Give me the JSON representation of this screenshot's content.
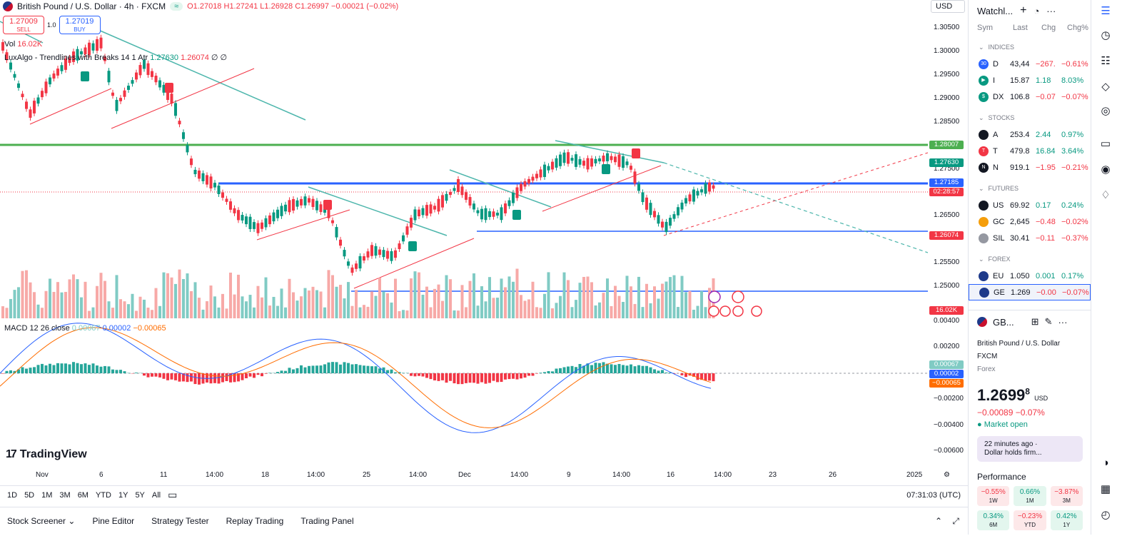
{
  "header": {
    "symbol_title": "British Pound / U.S. Dollar · 4h · FXCM",
    "pill": "≈",
    "open": "O1.27018",
    "high": "H1.27241",
    "low": "L1.26928",
    "close": "C1.26997",
    "change": "−0.00021 (−0.02%)"
  },
  "trade": {
    "sell_price": "1.27009",
    "sell_label": "SELL",
    "qty": "1.0",
    "buy_price": "1.27019",
    "buy_label": "BUY"
  },
  "indicators": {
    "vol_label": "Vol",
    "vol_value": "16.02K",
    "trend_name": "LuxAlgo - Trendlines with Breaks 14 1 Atr",
    "trend_v1": "1.27630",
    "trend_v2": "1.26074",
    "trend_tail": "∅ ∅",
    "macd_name": "MACD 12 26 close",
    "macd_v1": "0.00067",
    "macd_v2": "0.00002",
    "macd_v3": "−0.00065"
  },
  "currency": "USD",
  "price_ticks": [
    "1.30500",
    "1.30000",
    "1.29500",
    "1.29000",
    "1.28500",
    "1.27500",
    "1.26500",
    "1.25500",
    "1.25000",
    "0.00400",
    "0.00200",
    "−0.00200",
    "−0.00400",
    "−0.00600"
  ],
  "price_tags": {
    "green_line": "1.28007",
    "trend_upper": "1.27630",
    "blue_line": "1.27185",
    "countdown": "02:28:57",
    "trend_lower": "1.26074",
    "volume": "16.02K",
    "macd_hist": "0.00067",
    "macd_line": "0.00002",
    "macd_signal": "−0.00065"
  },
  "time_axis": [
    "Nov",
    "6",
    "11",
    "14:00",
    "18",
    "14:00",
    "25",
    "14:00",
    "Dec",
    "14:00",
    "9",
    "14:00",
    "16",
    "14:00",
    "23",
    "26",
    "2025"
  ],
  "logo_text": "TradingView",
  "ranges": [
    "1D",
    "5D",
    "1M",
    "3M",
    "6M",
    "YTD",
    "1Y",
    "5Y",
    "All"
  ],
  "clock": "07:31:03 (UTC)",
  "bottom_tabs": [
    "Stock Screener",
    "Pine Editor",
    "Strategy Tester",
    "Replay Trading",
    "Trading Panel"
  ],
  "watchlist": {
    "title": "Watchl...",
    "cols": [
      "Sym",
      "Last",
      "Chg",
      "Chg%"
    ],
    "sections": [
      {
        "name": "INDICES",
        "rows": [
          {
            "sym": "D",
            "last": "43,44",
            "chg": "−267.",
            "pct": "−0.61%",
            "dir": "dn",
            "color": "#2962ff",
            "ico": "30"
          },
          {
            "sym": "I",
            "last": "15.87",
            "chg": "1.18",
            "pct": "8.03%",
            "dir": "up",
            "color": "#089981",
            "ico": "▶"
          },
          {
            "sym": "DX",
            "last": "106.8",
            "chg": "−0.07",
            "pct": "−0.07%",
            "dir": "dn",
            "color": "#089981",
            "ico": "$"
          }
        ]
      },
      {
        "name": "STOCKS",
        "rows": [
          {
            "sym": "A",
            "last": "253.4",
            "chg": "2.44",
            "pct": "0.97%",
            "dir": "up",
            "color": "#131722",
            "ico": ""
          },
          {
            "sym": "T",
            "last": "479.8",
            "chg": "16.84",
            "pct": "3.64%",
            "dir": "up",
            "color": "#f23645",
            "ico": "T"
          },
          {
            "sym": "N",
            "last": "919.1",
            "chg": "−1.95",
            "pct": "−0.21%",
            "dir": "dn",
            "color": "#131722",
            "ico": "N"
          }
        ]
      },
      {
        "name": "FUTURES",
        "rows": [
          {
            "sym": "US",
            "last": "69.92",
            "chg": "0.17",
            "pct": "0.24%",
            "dir": "up",
            "color": "#131722",
            "ico": ""
          },
          {
            "sym": "GC",
            "last": "2,645",
            "chg": "−0.48",
            "pct": "−0.02%",
            "dir": "dn",
            "color": "#f59e0b",
            "ico": ""
          },
          {
            "sym": "SIL",
            "last": "30.41",
            "chg": "−0.11",
            "pct": "−0.37%",
            "dir": "dn",
            "color": "#9598a1",
            "ico": ""
          }
        ]
      },
      {
        "name": "FOREX",
        "rows": [
          {
            "sym": "EU",
            "last": "1.050",
            "chg": "0.001",
            "pct": "0.17%",
            "dir": "up",
            "color": "#1e3a8a",
            "ico": ""
          },
          {
            "sym": "GE",
            "last": "1.269",
            "chg": "−0.00",
            "pct": "−0.07%",
            "dir": "dn",
            "color": "#1e3a8a",
            "ico": ""
          }
        ]
      }
    ]
  },
  "detail": {
    "short": "GB...",
    "name": "British Pound / U.S. Dollar",
    "exchange": "FXCM",
    "category": "Forex",
    "price_main": "1.2699",
    "price_sup": "8",
    "price_unit": "USD",
    "change": "−0.00089  −0.07%",
    "market": "Market open",
    "news_time": "22 minutes ago ·",
    "news_text": "Dollar holds firm...",
    "perf_title": "Performance",
    "perf": [
      {
        "v": "−0.55%",
        "p": "1W",
        "c": "r"
      },
      {
        "v": "0.66%",
        "p": "1M",
        "c": "g"
      },
      {
        "v": "−3.87%",
        "p": "3M",
        "c": "r"
      },
      {
        "v": "0.34%",
        "p": "6M",
        "c": "g"
      },
      {
        "v": "−0.23%",
        "p": "YTD",
        "c": "r"
      },
      {
        "v": "0.42%",
        "p": "1Y",
        "c": "g"
      }
    ]
  },
  "colors": {
    "up": "#089981",
    "down": "#f23645",
    "blue": "#2962ff",
    "green": "#4caf50"
  }
}
